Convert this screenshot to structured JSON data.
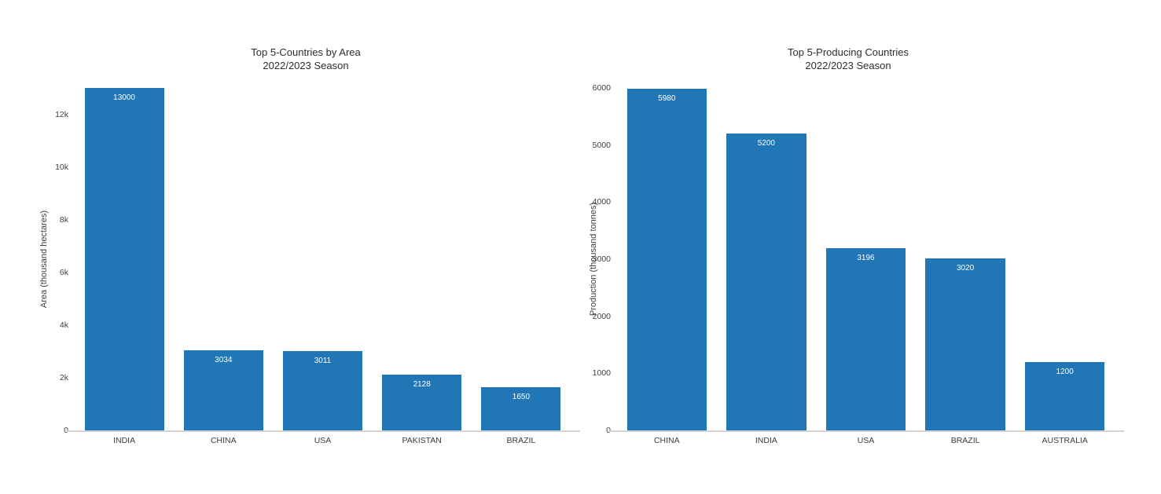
{
  "chart_data": [
    {
      "type": "bar",
      "title": "Top 5-Countries by Area",
      "subtitle": "2022/2023 Season",
      "categories": [
        "INDIA",
        "CHINA",
        "USA",
        "PAKISTAN",
        "BRAZIL"
      ],
      "values": [
        13000,
        3034,
        3011,
        2128,
        1650
      ],
      "value_labels": [
        "13000",
        "3034",
        "3011",
        "2128",
        "1650"
      ],
      "xlabel": "",
      "ylabel": "Area (thousand hectares)",
      "ylim": [
        0,
        13000
      ],
      "yticks": {
        "values": [
          0,
          2000,
          4000,
          6000,
          8000,
          10000,
          12000
        ],
        "labels": [
          "0",
          "2k",
          "4k",
          "6k",
          "8k",
          "10k",
          "12k"
        ]
      },
      "bar_color": "#2176b5",
      "value_label_color": "#ffffff",
      "grid": false,
      "legend": false
    },
    {
      "type": "bar",
      "title": "Top 5-Producing Countries",
      "subtitle": "2022/2023 Season",
      "categories": [
        "CHINA",
        "INDIA",
        "USA",
        "BRAZIL",
        "AUSTRALIA"
      ],
      "values": [
        5980,
        5200,
        3196,
        3020,
        1200
      ],
      "value_labels": [
        "5980",
        "5200",
        "3196",
        "3020",
        "1200"
      ],
      "xlabel": "",
      "ylabel": "Production (thousand tonnes)",
      "ylim": [
        0,
        6000
      ],
      "yticks": {
        "values": [
          0,
          1000,
          2000,
          3000,
          4000,
          5000,
          6000
        ],
        "labels": [
          "0",
          "1000",
          "2000",
          "3000",
          "4000",
          "5000",
          "6000"
        ]
      },
      "bar_color": "#2176b5",
      "value_label_color": "#ffffff",
      "grid": false,
      "legend": false
    }
  ]
}
